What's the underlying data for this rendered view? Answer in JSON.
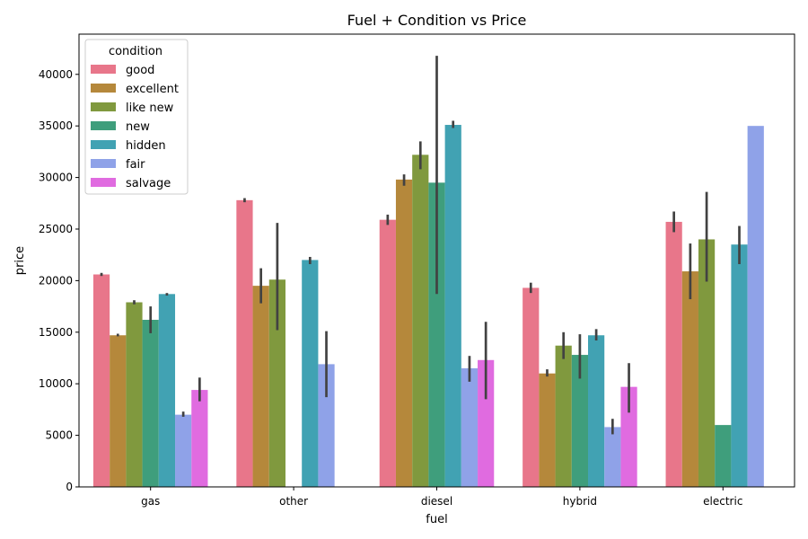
{
  "chart_data": {
    "type": "bar",
    "title": "Fuel + Condition vs Price",
    "xlabel": "fuel",
    "ylabel": "price",
    "categories": [
      "gas",
      "other",
      "diesel",
      "hybrid",
      "electric"
    ],
    "ylim": [
      0,
      43900
    ],
    "yticks": [
      0,
      5000,
      10000,
      15000,
      20000,
      25000,
      30000,
      35000,
      40000
    ],
    "legend": {
      "title": "condition",
      "placement": "top-left"
    },
    "series": [
      {
        "name": "good",
        "color": "#e8768a",
        "values": [
          20600,
          27800,
          25900,
          19300,
          25700
        ],
        "err_low": [
          20450,
          27600,
          25400,
          18800,
          24700
        ],
        "err_high": [
          20750,
          28000,
          26400,
          19800,
          26700
        ]
      },
      {
        "name": "excellent",
        "color": "#b5883b",
        "values": [
          14700,
          19500,
          29800,
          11000,
          20900
        ],
        "err_low": [
          14600,
          17800,
          29200,
          10700,
          18200
        ],
        "err_high": [
          14850,
          21200,
          30300,
          11400,
          23600
        ]
      },
      {
        "name": "like new",
        "color": "#80993e",
        "values": [
          17900,
          20100,
          32200,
          13700,
          24000
        ],
        "err_low": [
          17700,
          15200,
          30800,
          12400,
          19900
        ],
        "err_high": [
          18100,
          25600,
          33500,
          15000,
          28600
        ]
      },
      {
        "name": "new",
        "color": "#3f9e7c",
        "values": [
          16200,
          null,
          29500,
          12800,
          6000
        ],
        "err_low": [
          14900,
          null,
          18700,
          10500,
          null
        ],
        "err_high": [
          17500,
          null,
          41800,
          14800,
          null
        ]
      },
      {
        "name": "hidden",
        "color": "#41a2b3",
        "values": [
          18700,
          22000,
          35100,
          14700,
          23500
        ],
        "err_low": [
          18550,
          21600,
          34800,
          14200,
          21600
        ],
        "err_high": [
          18800,
          22300,
          35500,
          15300,
          25300
        ]
      },
      {
        "name": "fair",
        "color": "#8fa2e8",
        "values": [
          7000,
          11900,
          11500,
          5800,
          35000
        ],
        "err_low": [
          6800,
          8700,
          10200,
          5100,
          null
        ],
        "err_high": [
          7300,
          15100,
          12700,
          6600,
          null
        ]
      },
      {
        "name": "salvage",
        "color": "#e06be0",
        "values": [
          9400,
          null,
          12300,
          9700,
          null
        ],
        "err_low": [
          8300,
          null,
          8500,
          7200,
          null
        ],
        "err_high": [
          10600,
          null,
          16000,
          12000,
          null
        ]
      }
    ]
  }
}
